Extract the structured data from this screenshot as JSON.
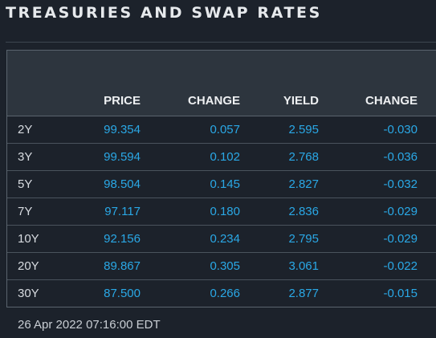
{
  "title": "TREASURIES AND SWAP RATES",
  "table": {
    "headers": [
      "PRICE",
      "CHANGE",
      "YIELD",
      "CHANGE"
    ],
    "rows": [
      {
        "tenor": "2Y",
        "price": "99.354",
        "price_change": "0.057",
        "yield": "2.595",
        "yield_change": "-0.030"
      },
      {
        "tenor": "3Y",
        "price": "99.594",
        "price_change": "0.102",
        "yield": "2.768",
        "yield_change": "-0.036"
      },
      {
        "tenor": "5Y",
        "price": "98.504",
        "price_change": "0.145",
        "yield": "2.827",
        "yield_change": "-0.032"
      },
      {
        "tenor": "7Y",
        "price": "97.117",
        "price_change": "0.180",
        "yield": "2.836",
        "yield_change": "-0.029"
      },
      {
        "tenor": "10Y",
        "price": "92.156",
        "price_change": "0.234",
        "yield": "2.795",
        "yield_change": "-0.029"
      },
      {
        "tenor": "20Y",
        "price": "89.867",
        "price_change": "0.305",
        "yield": "3.061",
        "yield_change": "-0.022"
      },
      {
        "tenor": "30Y",
        "price": "87.500",
        "price_change": "0.266",
        "yield": "2.877",
        "yield_change": "-0.015"
      }
    ]
  },
  "timestamp": "26 Apr 2022 07:16:00 EDT",
  "colors": {
    "background": "#1c222b",
    "header_background": "#2d353e",
    "value_text": "#2aa8e6",
    "label_text": "#d7dbe0"
  }
}
